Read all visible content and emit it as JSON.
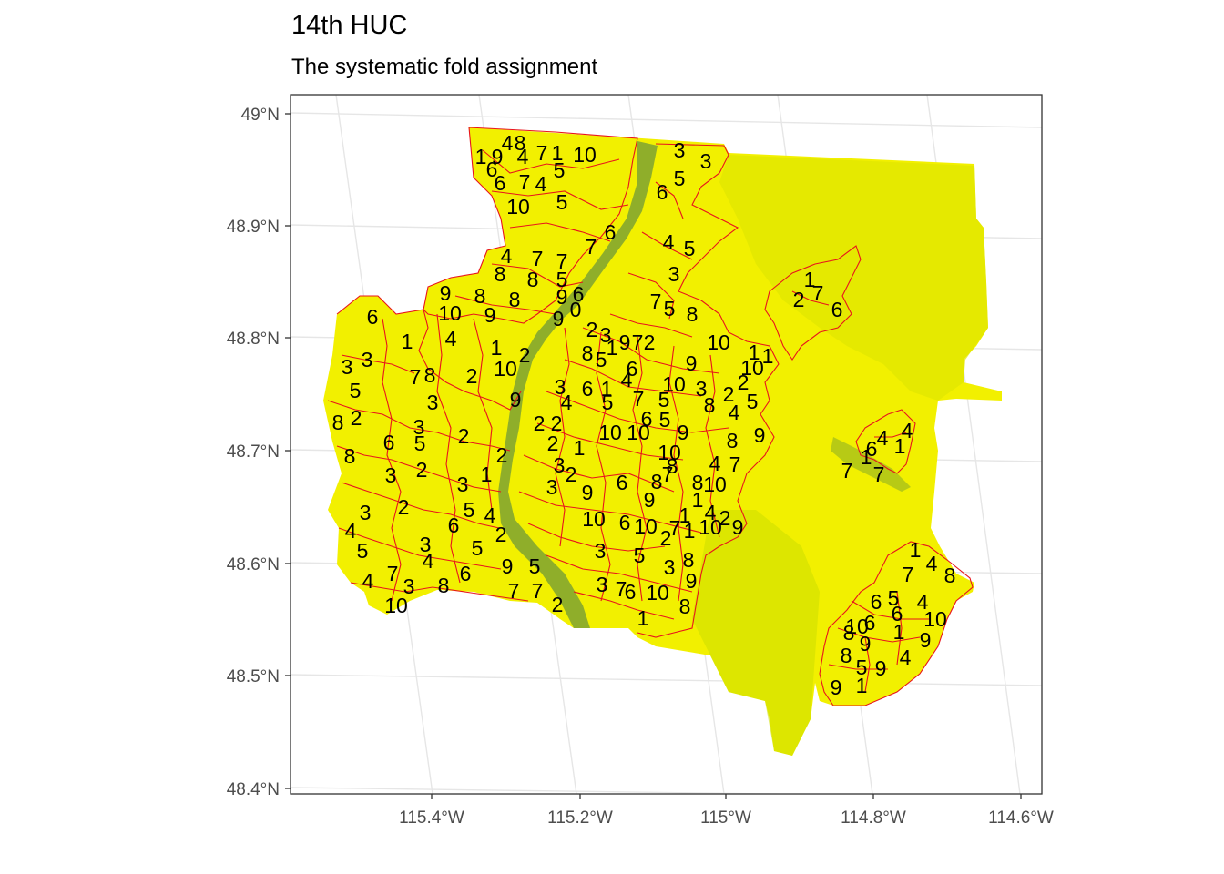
{
  "title": "14th HUC",
  "subtitle": "The systematic fold assignment",
  "colors": {
    "land": "#f2f000",
    "land_dark": "#c9d400",
    "river": "#8fae2a",
    "boundary": "#e8141c",
    "grid": "#e6e6e6",
    "panel_border": "#333333"
  },
  "axes": {
    "y_ticks": [
      "49°N",
      "48.9°N",
      "48.8°N",
      "48.7°N",
      "48.6°N",
      "48.5°N",
      "48.4°N"
    ],
    "x_ticks": [
      "115.4°W",
      "115.2°W",
      "115°W",
      "114.8°W",
      "114.6°W"
    ]
  },
  "fold_labels": [
    {
      "t": "4",
      "x": 557,
      "y": 157
    },
    {
      "t": "8",
      "x": 571,
      "y": 157
    },
    {
      "t": "1",
      "x": 528,
      "y": 172
    },
    {
      "t": "9",
      "x": 546,
      "y": 172
    },
    {
      "t": "4",
      "x": 574,
      "y": 172
    },
    {
      "t": "7",
      "x": 595,
      "y": 168
    },
    {
      "t": "1",
      "x": 612,
      "y": 168
    },
    {
      "t": "10",
      "x": 642,
      "y": 170
    },
    {
      "t": "6",
      "x": 540,
      "y": 186
    },
    {
      "t": "5",
      "x": 614,
      "y": 187
    },
    {
      "t": "6",
      "x": 549,
      "y": 201
    },
    {
      "t": "7",
      "x": 576,
      "y": 200
    },
    {
      "t": "4",
      "x": 594,
      "y": 202
    },
    {
      "t": "10",
      "x": 569,
      "y": 227
    },
    {
      "t": "5",
      "x": 617,
      "y": 222
    },
    {
      "t": "3",
      "x": 746,
      "y": 165
    },
    {
      "t": "3",
      "x": 775,
      "y": 177
    },
    {
      "t": "5",
      "x": 746,
      "y": 196
    },
    {
      "t": "6",
      "x": 727,
      "y": 211
    },
    {
      "t": "6",
      "x": 670,
      "y": 255
    },
    {
      "t": "4",
      "x": 734,
      "y": 266
    },
    {
      "t": "5",
      "x": 757,
      "y": 273
    },
    {
      "t": "7",
      "x": 649,
      "y": 271
    },
    {
      "t": "4",
      "x": 556,
      "y": 281
    },
    {
      "t": "7",
      "x": 590,
      "y": 284
    },
    {
      "t": "7",
      "x": 617,
      "y": 287
    },
    {
      "t": "8",
      "x": 549,
      "y": 301
    },
    {
      "t": "8",
      "x": 585,
      "y": 307
    },
    {
      "t": "5",
      "x": 617,
      "y": 307
    },
    {
      "t": "3",
      "x": 740,
      "y": 301
    },
    {
      "t": "9",
      "x": 489,
      "y": 322
    },
    {
      "t": "8",
      "x": 527,
      "y": 325
    },
    {
      "t": "8",
      "x": 565,
      "y": 329
    },
    {
      "t": "9",
      "x": 617,
      "y": 326
    },
    {
      "t": "6",
      "x": 635,
      "y": 323
    },
    {
      "t": "0",
      "x": 632,
      "y": 340
    },
    {
      "t": "10",
      "x": 494,
      "y": 344
    },
    {
      "t": "9",
      "x": 538,
      "y": 346
    },
    {
      "t": "9",
      "x": 613,
      "y": 350
    },
    {
      "t": "7",
      "x": 720,
      "y": 331
    },
    {
      "t": "5",
      "x": 735,
      "y": 339
    },
    {
      "t": "8",
      "x": 760,
      "y": 345
    },
    {
      "t": "1",
      "x": 889,
      "y": 307
    },
    {
      "t": "7",
      "x": 898,
      "y": 322
    },
    {
      "t": "2",
      "x": 877,
      "y": 329
    },
    {
      "t": "6",
      "x": 919,
      "y": 340
    },
    {
      "t": "6",
      "x": 409,
      "y": 348
    },
    {
      "t": "1",
      "x": 447,
      "y": 375
    },
    {
      "t": "4",
      "x": 495,
      "y": 372
    },
    {
      "t": "2",
      "x": 650,
      "y": 362
    },
    {
      "t": "3",
      "x": 665,
      "y": 368
    },
    {
      "t": "9",
      "x": 686,
      "y": 376
    },
    {
      "t": "7",
      "x": 700,
      "y": 376
    },
    {
      "t": "2",
      "x": 713,
      "y": 376
    },
    {
      "t": "1",
      "x": 672,
      "y": 382
    },
    {
      "t": "10",
      "x": 789,
      "y": 376
    },
    {
      "t": "1",
      "x": 545,
      "y": 382
    },
    {
      "t": "2",
      "x": 576,
      "y": 390
    },
    {
      "t": "8",
      "x": 645,
      "y": 388
    },
    {
      "t": "5",
      "x": 660,
      "y": 395
    },
    {
      "t": "1",
      "x": 828,
      "y": 387
    },
    {
      "t": "1",
      "x": 843,
      "y": 391
    },
    {
      "t": "3",
      "x": 381,
      "y": 403
    },
    {
      "t": "3",
      "x": 403,
      "y": 395
    },
    {
      "t": "10",
      "x": 555,
      "y": 405
    },
    {
      "t": "6",
      "x": 694,
      "y": 405
    },
    {
      "t": "9",
      "x": 759,
      "y": 399
    },
    {
      "t": "10",
      "x": 826,
      "y": 404
    },
    {
      "t": "7",
      "x": 456,
      "y": 414
    },
    {
      "t": "8",
      "x": 472,
      "y": 412
    },
    {
      "t": "2",
      "x": 518,
      "y": 413
    },
    {
      "t": "4",
      "x": 688,
      "y": 417
    },
    {
      "t": "2",
      "x": 816,
      "y": 420
    },
    {
      "t": "5",
      "x": 390,
      "y": 429
    },
    {
      "t": "3",
      "x": 615,
      "y": 425
    },
    {
      "t": "6",
      "x": 645,
      "y": 427
    },
    {
      "t": "1",
      "x": 666,
      "y": 427
    },
    {
      "t": "10",
      "x": 740,
      "y": 422
    },
    {
      "t": "3",
      "x": 770,
      "y": 427
    },
    {
      "t": "2",
      "x": 800,
      "y": 433
    },
    {
      "t": "9",
      "x": 566,
      "y": 439
    },
    {
      "t": "4",
      "x": 622,
      "y": 442
    },
    {
      "t": "5",
      "x": 667,
      "y": 442
    },
    {
      "t": "7",
      "x": 701,
      "y": 438
    },
    {
      "t": "5",
      "x": 729,
      "y": 439
    },
    {
      "t": "8",
      "x": 779,
      "y": 445
    },
    {
      "t": "5",
      "x": 826,
      "y": 441
    },
    {
      "t": "3",
      "x": 475,
      "y": 442
    },
    {
      "t": "2",
      "x": 391,
      "y": 459
    },
    {
      "t": "8",
      "x": 371,
      "y": 464
    },
    {
      "t": "4",
      "x": 806,
      "y": 453
    },
    {
      "t": "2",
      "x": 592,
      "y": 465
    },
    {
      "t": "2",
      "x": 611,
      "y": 465
    },
    {
      "t": "6",
      "x": 710,
      "y": 460
    },
    {
      "t": "5",
      "x": 730,
      "y": 461
    },
    {
      "t": "3",
      "x": 460,
      "y": 469
    },
    {
      "t": "10",
      "x": 670,
      "y": 475
    },
    {
      "t": "10",
      "x": 701,
      "y": 475
    },
    {
      "t": "9",
      "x": 750,
      "y": 475
    },
    {
      "t": "9",
      "x": 834,
      "y": 478
    },
    {
      "t": "2",
      "x": 509,
      "y": 479
    },
    {
      "t": "6",
      "x": 427,
      "y": 486
    },
    {
      "t": "5",
      "x": 461,
      "y": 487
    },
    {
      "t": "2",
      "x": 607,
      "y": 487
    },
    {
      "t": "1",
      "x": 636,
      "y": 492
    },
    {
      "t": "8",
      "x": 804,
      "y": 484
    },
    {
      "t": "4",
      "x": 996,
      "y": 473
    },
    {
      "t": "4",
      "x": 969,
      "y": 481
    },
    {
      "t": "1",
      "x": 988,
      "y": 490
    },
    {
      "t": "6",
      "x": 957,
      "y": 493
    },
    {
      "t": "1",
      "x": 951,
      "y": 502
    },
    {
      "t": "8",
      "x": 384,
      "y": 501
    },
    {
      "t": "2",
      "x": 551,
      "y": 500
    },
    {
      "t": "10",
      "x": 735,
      "y": 497
    },
    {
      "t": "3",
      "x": 614,
      "y": 511
    },
    {
      "t": "2",
      "x": 627,
      "y": 521
    },
    {
      "t": "8",
      "x": 738,
      "y": 512
    },
    {
      "t": "4",
      "x": 785,
      "y": 509
    },
    {
      "t": "7",
      "x": 807,
      "y": 510
    },
    {
      "t": "2",
      "x": 463,
      "y": 516
    },
    {
      "t": "3",
      "x": 429,
      "y": 522
    },
    {
      "t": "1",
      "x": 534,
      "y": 521
    },
    {
      "t": "7",
      "x": 930,
      "y": 517
    },
    {
      "t": "7",
      "x": 965,
      "y": 521
    },
    {
      "t": "6",
      "x": 683,
      "y": 530
    },
    {
      "t": "8",
      "x": 721,
      "y": 529
    },
    {
      "t": "7",
      "x": 733,
      "y": 521
    },
    {
      "t": "3",
      "x": 508,
      "y": 532
    },
    {
      "t": "3",
      "x": 606,
      "y": 535
    },
    {
      "t": "8",
      "x": 766,
      "y": 530
    },
    {
      "t": "10",
      "x": 785,
      "y": 532
    },
    {
      "t": "9",
      "x": 645,
      "y": 541
    },
    {
      "t": "9",
      "x": 713,
      "y": 549
    },
    {
      "t": "1",
      "x": 766,
      "y": 549
    },
    {
      "t": "2",
      "x": 443,
      "y": 557
    },
    {
      "t": "3",
      "x": 401,
      "y": 563
    },
    {
      "t": "5",
      "x": 515,
      "y": 560
    },
    {
      "t": "4",
      "x": 538,
      "y": 566
    },
    {
      "t": "1",
      "x": 752,
      "y": 566
    },
    {
      "t": "4",
      "x": 780,
      "y": 563
    },
    {
      "t": "2",
      "x": 796,
      "y": 569
    },
    {
      "t": "6",
      "x": 498,
      "y": 577
    },
    {
      "t": "10",
      "x": 652,
      "y": 570
    },
    {
      "t": "6",
      "x": 686,
      "y": 574
    },
    {
      "t": "10",
      "x": 709,
      "y": 578
    },
    {
      "t": "7",
      "x": 741,
      "y": 580
    },
    {
      "t": "1",
      "x": 757,
      "y": 583
    },
    {
      "t": "10",
      "x": 780,
      "y": 579
    },
    {
      "t": "9",
      "x": 810,
      "y": 579
    },
    {
      "t": "4",
      "x": 385,
      "y": 583
    },
    {
      "t": "2",
      "x": 550,
      "y": 587
    },
    {
      "t": "2",
      "x": 731,
      "y": 591
    },
    {
      "t": "5",
      "x": 398,
      "y": 605
    },
    {
      "t": "3",
      "x": 467,
      "y": 598
    },
    {
      "t": "5",
      "x": 524,
      "y": 602
    },
    {
      "t": "3",
      "x": 659,
      "y": 605
    },
    {
      "t": "5",
      "x": 702,
      "y": 610
    },
    {
      "t": "1",
      "x": 1005,
      "y": 604
    },
    {
      "t": "4",
      "x": 470,
      "y": 616
    },
    {
      "t": "9",
      "x": 557,
      "y": 622
    },
    {
      "t": "5",
      "x": 587,
      "y": 622
    },
    {
      "t": "8",
      "x": 756,
      "y": 615
    },
    {
      "t": "3",
      "x": 735,
      "y": 623
    },
    {
      "t": "7",
      "x": 997,
      "y": 631
    },
    {
      "t": "4",
      "x": 1023,
      "y": 619
    },
    {
      "t": "8",
      "x": 1043,
      "y": 632
    },
    {
      "t": "6",
      "x": 511,
      "y": 630
    },
    {
      "t": "7",
      "x": 431,
      "y": 630
    },
    {
      "t": "4",
      "x": 404,
      "y": 638
    },
    {
      "t": "3",
      "x": 449,
      "y": 644
    },
    {
      "t": "8",
      "x": 487,
      "y": 643
    },
    {
      "t": "3",
      "x": 661,
      "y": 642
    },
    {
      "t": "7",
      "x": 682,
      "y": 647
    },
    {
      "t": "6",
      "x": 692,
      "y": 650
    },
    {
      "t": "9",
      "x": 759,
      "y": 638
    },
    {
      "t": "10",
      "x": 722,
      "y": 651
    },
    {
      "t": "7",
      "x": 564,
      "y": 649
    },
    {
      "t": "7",
      "x": 590,
      "y": 649
    },
    {
      "t": "2",
      "x": 612,
      "y": 664
    },
    {
      "t": "6",
      "x": 962,
      "y": 661
    },
    {
      "t": "5",
      "x": 981,
      "y": 657
    },
    {
      "t": "4",
      "x": 1013,
      "y": 661
    },
    {
      "t": "8",
      "x": 752,
      "y": 666
    },
    {
      "t": "10",
      "x": 435,
      "y": 665
    },
    {
      "t": "6",
      "x": 985,
      "y": 674
    },
    {
      "t": "10",
      "x": 1027,
      "y": 680
    },
    {
      "t": "1",
      "x": 706,
      "y": 679
    },
    {
      "t": "10",
      "x": 941,
      "y": 688
    },
    {
      "t": "6",
      "x": 955,
      "y": 684
    },
    {
      "t": "8",
      "x": 932,
      "y": 695
    },
    {
      "t": "9",
      "x": 950,
      "y": 707
    },
    {
      "t": "1",
      "x": 987,
      "y": 694
    },
    {
      "t": "9",
      "x": 1016,
      "y": 703
    },
    {
      "t": "8",
      "x": 929,
      "y": 720
    },
    {
      "t": "4",
      "x": 994,
      "y": 722
    },
    {
      "t": "5",
      "x": 946,
      "y": 733
    },
    {
      "t": "9",
      "x": 967,
      "y": 734
    },
    {
      "t": "9",
      "x": 918,
      "y": 755
    },
    {
      "t": "1",
      "x": 946,
      "y": 753
    }
  ]
}
